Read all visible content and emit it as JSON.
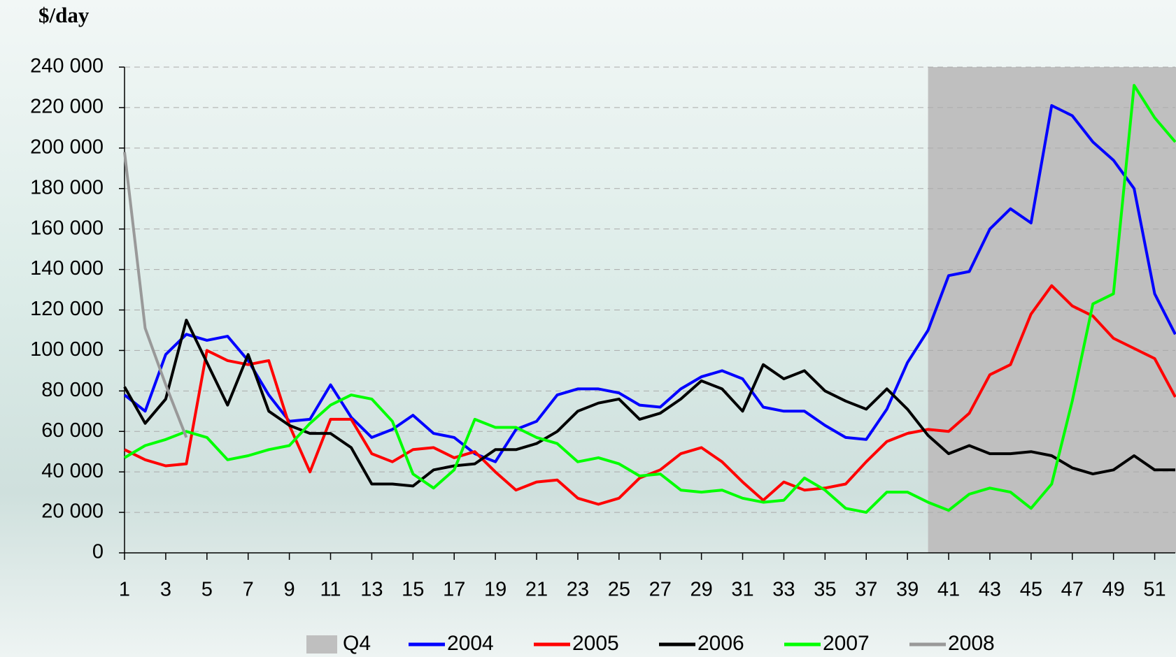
{
  "chart_data": {
    "type": "line",
    "ylabel": "$/day",
    "xlim": [
      1,
      52
    ],
    "xticks": [
      1,
      3,
      5,
      7,
      9,
      11,
      13,
      15,
      17,
      19,
      21,
      23,
      25,
      27,
      29,
      31,
      33,
      35,
      37,
      39,
      41,
      43,
      45,
      47,
      49,
      51
    ],
    "ylim": [
      0,
      240000
    ],
    "yticks": [
      0,
      {
        "value": 20000,
        "label": "20 000"
      },
      {
        "value": 40000,
        "label": "40 000"
      },
      {
        "value": 60000,
        "label": "60 000"
      },
      {
        "value": 80000,
        "label": "80 000"
      },
      {
        "value": 100000,
        "label": "100 000"
      },
      {
        "value": 120000,
        "label": "120 000"
      },
      {
        "value": 140000,
        "label": "140 000"
      },
      {
        "value": 160000,
        "label": "160 000"
      },
      {
        "value": 180000,
        "label": "180 000"
      },
      {
        "value": 200000,
        "label": "200 000"
      },
      {
        "value": 220000,
        "label": "220 000"
      },
      {
        "value": 240000,
        "label": "240 000"
      }
    ],
    "grid": true,
    "x": [
      1,
      2,
      3,
      4,
      5,
      6,
      7,
      8,
      9,
      10,
      11,
      12,
      13,
      14,
      15,
      16,
      17,
      18,
      19,
      20,
      21,
      22,
      23,
      24,
      25,
      26,
      27,
      28,
      29,
      30,
      31,
      32,
      33,
      34,
      35,
      36,
      37,
      38,
      39,
      40,
      41,
      42,
      43,
      44,
      45,
      46,
      47,
      48,
      49,
      50,
      51,
      52
    ],
    "shade": {
      "name": "Q4",
      "color": "#bfbfbf",
      "xrange": [
        40,
        52
      ]
    },
    "series": [
      {
        "name": "2004",
        "color": "#0000ff",
        "values": [
          78000,
          70000,
          98000,
          108000,
          105000,
          107000,
          95000,
          78000,
          65000,
          66000,
          83000,
          67000,
          57000,
          61000,
          68000,
          59000,
          57000,
          49000,
          45000,
          61000,
          65000,
          78000,
          81000,
          81000,
          79000,
          73000,
          72000,
          81000,
          87000,
          90000,
          86000,
          72000,
          70000,
          70000,
          63000,
          57000,
          56000,
          71000,
          94000,
          110000,
          137000,
          139000,
          160000,
          170000,
          163000,
          221000,
          216000,
          203000,
          194000,
          180000,
          128000,
          108000
        ]
      },
      {
        "name": "2005",
        "color": "#ff0000",
        "values": [
          51000,
          46000,
          43000,
          44000,
          100000,
          95000,
          93000,
          95000,
          63000,
          40000,
          66000,
          66000,
          49000,
          45000,
          51000,
          52000,
          47000,
          50000,
          40000,
          31000,
          35000,
          36000,
          27000,
          24000,
          27000,
          37000,
          41000,
          49000,
          52000,
          45000,
          35000,
          26000,
          35000,
          31000,
          32000,
          34000,
          45000,
          55000,
          59000,
          61000,
          60000,
          69000,
          88000,
          93000,
          118000,
          132000,
          122000,
          117000,
          106000,
          101000,
          96000,
          77000
        ]
      },
      {
        "name": "2006",
        "color": "#000000",
        "values": [
          82000,
          64000,
          76000,
          115000,
          94000,
          73000,
          98000,
          70000,
          63000,
          59000,
          59000,
          52000,
          34000,
          34000,
          33000,
          41000,
          43000,
          44000,
          51000,
          51000,
          54000,
          60000,
          70000,
          74000,
          76000,
          66000,
          69000,
          76000,
          85000,
          81000,
          70000,
          93000,
          86000,
          90000,
          80000,
          75000,
          71000,
          81000,
          71000,
          58000,
          49000,
          53000,
          49000,
          49000,
          50000,
          48000,
          42000,
          39000,
          41000,
          48000,
          41000,
          41000
        ]
      },
      {
        "name": "2007",
        "color": "#00ff00",
        "values": [
          47000,
          53000,
          56000,
          60000,
          57000,
          46000,
          48000,
          51000,
          53000,
          64000,
          73000,
          78000,
          76000,
          65000,
          39000,
          32000,
          41000,
          66000,
          62000,
          62000,
          57000,
          54000,
          45000,
          47000,
          44000,
          38000,
          39000,
          31000,
          30000,
          31000,
          27000,
          25000,
          26000,
          37000,
          31000,
          22000,
          20000,
          30000,
          30000,
          25000,
          21000,
          29000,
          32000,
          30000,
          22000,
          34000,
          75000,
          123000,
          128000,
          231000,
          215000,
          203000
        ]
      },
      {
        "name": "2008",
        "color": "#999999",
        "values": [
          198000,
          111000,
          83000,
          57000,
          null,
          null,
          null,
          null,
          null,
          null,
          null,
          null,
          null,
          null,
          null,
          null,
          null,
          null,
          null,
          null,
          null,
          null,
          null,
          null,
          null,
          null,
          null,
          null,
          null,
          null,
          null,
          null,
          null,
          null,
          null,
          null,
          null,
          null,
          null,
          null,
          null,
          null,
          null,
          null,
          null,
          null,
          null,
          null,
          null,
          null,
          null,
          null
        ]
      }
    ]
  }
}
